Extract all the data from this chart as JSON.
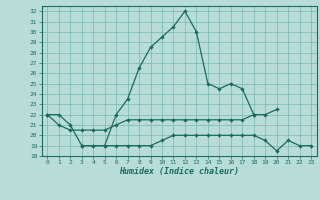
{
  "xlabel": "Humidex (Indice chaleur)",
  "xlim": [
    -0.5,
    23.5
  ],
  "ylim": [
    18,
    32.5
  ],
  "yticks": [
    18,
    19,
    20,
    21,
    22,
    23,
    24,
    25,
    26,
    27,
    28,
    29,
    30,
    31,
    32
  ],
  "xticks": [
    0,
    1,
    2,
    3,
    4,
    5,
    6,
    7,
    8,
    9,
    10,
    11,
    12,
    13,
    14,
    15,
    16,
    17,
    18,
    19,
    20,
    21,
    22,
    23
  ],
  "bg_color": "#b8ddd8",
  "grid_color": "#78b8b0",
  "line_color": "#1a6b60",
  "curve1_x": [
    0,
    1,
    2,
    3,
    4,
    5,
    6,
    7,
    8,
    9,
    10,
    11,
    12,
    13,
    14,
    15,
    16,
    17,
    18
  ],
  "curve1_y": [
    22,
    22,
    21,
    19,
    19,
    19,
    22,
    23.5,
    26.5,
    28.5,
    29.5,
    30.5,
    32,
    30,
    25,
    24.5,
    25,
    24.5,
    22
  ],
  "curve2_x": [
    0,
    1,
    2,
    3,
    4,
    5,
    6,
    7,
    8,
    9,
    10,
    11,
    12,
    13,
    14,
    15,
    16,
    17,
    18,
    19,
    20
  ],
  "curve2_y": [
    22,
    21,
    20.5,
    20.5,
    20.5,
    20.5,
    21,
    21.5,
    21.5,
    21.5,
    21.5,
    21.5,
    21.5,
    21.5,
    21.5,
    21.5,
    21.5,
    21.5,
    22,
    22,
    22.5
  ],
  "curve3_x": [
    3,
    4,
    5,
    6,
    7,
    8,
    9,
    10,
    11,
    12,
    13,
    14,
    15,
    16,
    17,
    18,
    19,
    20,
    21,
    22,
    23
  ],
  "curve3_y": [
    19,
    19,
    19,
    19,
    19,
    19,
    19,
    19.5,
    20,
    20,
    20,
    20,
    20,
    20,
    20,
    20,
    19.5,
    18.5,
    19.5,
    19,
    19
  ]
}
